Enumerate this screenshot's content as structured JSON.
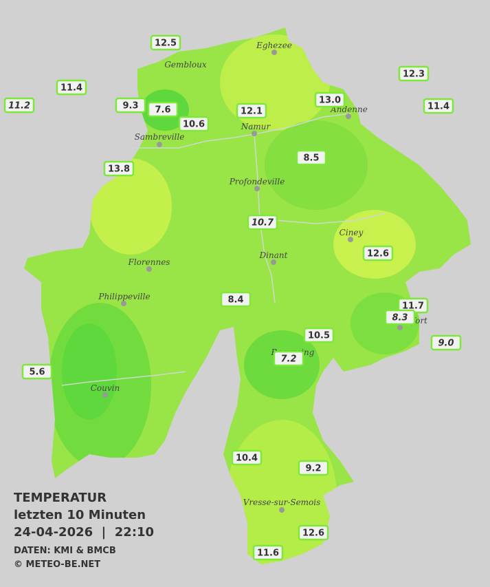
{
  "stations": [
    "12.5",
    "11.4",
    "11.2",
    "9.3",
    "7.6",
    "10.6",
    "12.1",
    "13.0",
    "12.3",
    "11.4",
    "13.8",
    "8.5",
    "10.7",
    "12.6",
    "8.4",
    "11.7",
    "8.3",
    "10.5",
    "9.0",
    "5.6",
    "7.2",
    "10.4",
    "9.2",
    "12.6",
    "11.6"
  ],
  "places": [
    "Eghezee",
    "Gembloux",
    "Andenne",
    "Namur",
    "Sambreville",
    "Profondeville",
    "Ciney",
    "Dinant",
    "Florennes",
    "Philippeville",
    "Beauraing",
    "Rochefort",
    "Couvin",
    "Vresse-sur-Semois"
  ],
  "legend": {
    "title": "TEMPERATUR",
    "subtitle": "letzten 10 Minuten",
    "datetime": "24-04-2026  |  22:10",
    "source": "DATEN: KMI & BMCB",
    "copyright": "© METEO-BE.NET"
  }
}
